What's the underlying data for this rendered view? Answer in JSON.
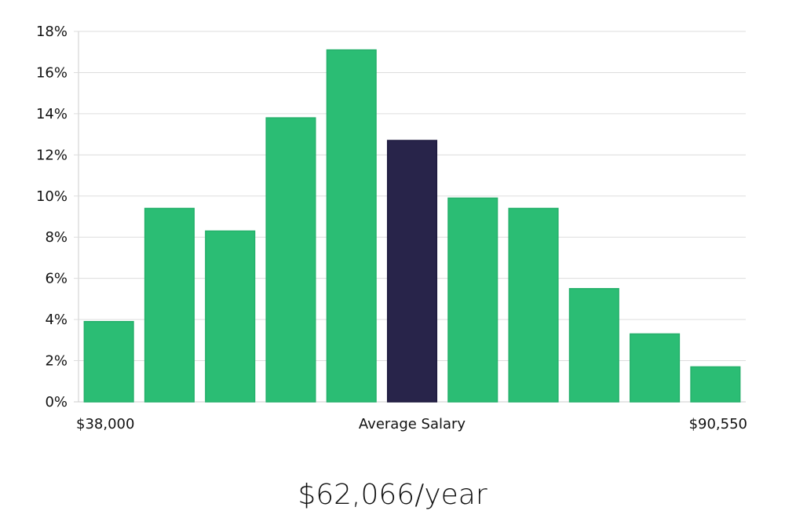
{
  "chart_data": {
    "type": "bar",
    "title": "",
    "xlabel": "Average Salary",
    "ylabel": "",
    "x_range_labels": {
      "min": "$38,000",
      "center": "Average Salary",
      "max": "$90,550"
    },
    "ylim": [
      0,
      18
    ],
    "y_ticks": [
      "0%",
      "2%",
      "4%",
      "6%",
      "8%",
      "10%",
      "12%",
      "14%",
      "16%",
      "18%"
    ],
    "values": [
      3.9,
      9.4,
      8.3,
      13.8,
      17.1,
      12.7,
      9.9,
      9.4,
      5.5,
      3.3,
      1.7
    ],
    "highlight_index": 5,
    "grid": true,
    "colors": {
      "bar": "#2bbd74",
      "highlight": "#28244a",
      "grid": "#dddddd",
      "axis": "#cccccc"
    }
  },
  "salary": "$62,066/year"
}
